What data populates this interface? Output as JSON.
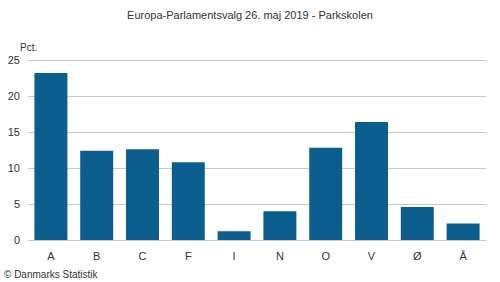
{
  "chart_data": {
    "type": "bar",
    "title": "Europa-Parlamentsvalg 26. maj 2019 - Parkskolen",
    "ylabel": "Pct.",
    "categories": [
      "A",
      "B",
      "C",
      "F",
      "I",
      "N",
      "O",
      "V",
      "Ø",
      "Å"
    ],
    "values": [
      23.2,
      12.4,
      12.6,
      10.8,
      1.2,
      4.0,
      12.8,
      16.4,
      4.6,
      2.3
    ],
    "color": "#0b5e8e",
    "ylim": [
      0,
      25
    ],
    "yticks": [
      0,
      5,
      10,
      15,
      20,
      25
    ],
    "grid": true,
    "annotations": [
      "© Danmarks Statistik"
    ]
  }
}
